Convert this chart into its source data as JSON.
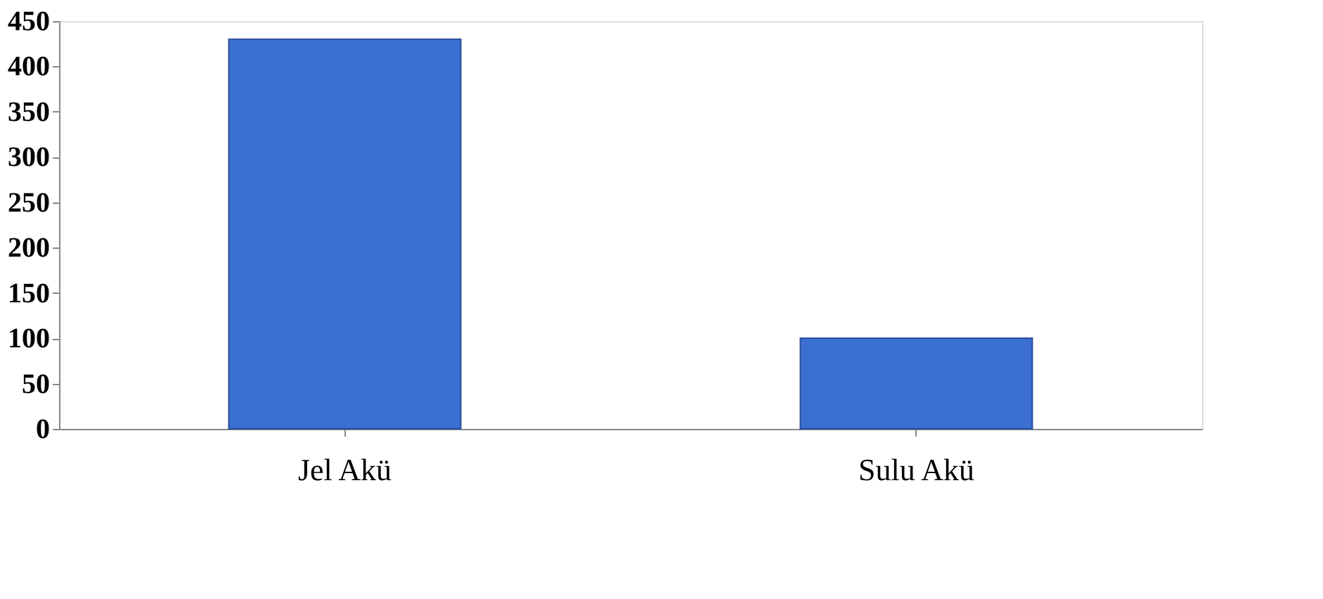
{
  "chart_data": {
    "type": "bar",
    "categories": [
      "Jel Akü",
      "Sulu Akü"
    ],
    "values": [
      430,
      100
    ],
    "color": "#3b6fd1",
    "ylim": [
      0,
      450
    ],
    "yticks": [
      0,
      50,
      100,
      150,
      200,
      250,
      300,
      350,
      400,
      450
    ],
    "grid": false
  }
}
